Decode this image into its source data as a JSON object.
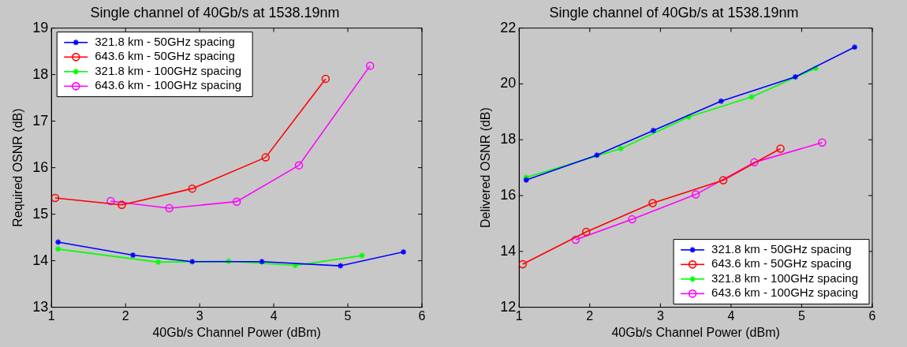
{
  "chart_data": [
    {
      "type": "line",
      "title": "Single channel of 40Gb/s at 1538.19nm",
      "xlabel": "40Gb/s Channel Power (dBm)",
      "ylabel": "Required OSNR (dB)",
      "xlim": [
        1,
        6
      ],
      "xticks": [
        1,
        2,
        3,
        4,
        5,
        6
      ],
      "ylim": [
        13,
        19
      ],
      "yticks": [
        13,
        14,
        15,
        16,
        17,
        18,
        19
      ],
      "grid": false,
      "legend": "top left",
      "series": [
        {
          "name": "321.8 km - 50GHz spacing",
          "color": "#0000ff",
          "marker": "cross",
          "x": [
            1.09,
            2.1,
            2.9,
            3.84,
            4.9,
            5.75
          ],
          "values": [
            14.4,
            14.12,
            13.98,
            13.98,
            13.89,
            14.19
          ]
        },
        {
          "name": "643.6 km - 50GHz spacing",
          "color": "#ff0000",
          "marker": "circle",
          "x": [
            1.05,
            1.95,
            2.9,
            3.89,
            4.7
          ],
          "values": [
            15.35,
            15.2,
            15.55,
            16.22,
            17.91
          ]
        },
        {
          "name": "321.8 km - 100GHz spacing",
          "color": "#00ff00",
          "marker": "cross",
          "x": [
            1.09,
            2.44,
            3.39,
            4.29,
            5.19
          ],
          "values": [
            14.25,
            13.97,
            13.99,
            13.9,
            14.11
          ]
        },
        {
          "name": "643.6 km - 100GHz spacing",
          "color": "#ff00ff",
          "marker": "circle",
          "x": [
            1.8,
            2.59,
            3.5,
            4.34,
            5.3
          ],
          "values": [
            15.28,
            15.13,
            15.27,
            16.05,
            18.19
          ]
        }
      ]
    },
    {
      "type": "line",
      "title": "Single channel of 40Gb/s at 1538.19nm",
      "xlabel": "40Gb/s Channel Power (dBm)",
      "ylabel": "Delivered OSNR (dB)",
      "xlim": [
        1,
        6
      ],
      "xticks": [
        1,
        2,
        3,
        4,
        5,
        6
      ],
      "ylim": [
        12,
        22
      ],
      "yticks": [
        12,
        14,
        16,
        18,
        20,
        22
      ],
      "grid": false,
      "legend": "bottom right",
      "series": [
        {
          "name": "321.8 km - 50GHz spacing",
          "color": "#0000ff",
          "marker": "cross",
          "x": [
            1.1,
            2.1,
            2.9,
            3.86,
            4.91,
            5.75
          ],
          "values": [
            16.56,
            17.45,
            18.33,
            19.38,
            20.25,
            21.32
          ]
        },
        {
          "name": "643.6 km - 50GHz spacing",
          "color": "#ff0000",
          "marker": "circle",
          "x": [
            1.05,
            1.95,
            2.89,
            3.89,
            4.7
          ],
          "values": [
            13.54,
            14.7,
            15.73,
            16.55,
            17.68
          ]
        },
        {
          "name": "321.8 km - 100GHz spacing",
          "color": "#00ff00",
          "marker": "cross",
          "x": [
            1.1,
            2.44,
            3.4,
            4.29,
            5.2
          ],
          "values": [
            16.65,
            17.68,
            18.82,
            19.53,
            20.56
          ]
        },
        {
          "name": "643.6 km - 100GHz spacing",
          "color": "#ff00ff",
          "marker": "circle",
          "x": [
            1.8,
            2.6,
            3.5,
            4.33,
            5.29
          ],
          "values": [
            14.42,
            15.15,
            16.04,
            17.19,
            17.9
          ]
        }
      ]
    }
  ]
}
